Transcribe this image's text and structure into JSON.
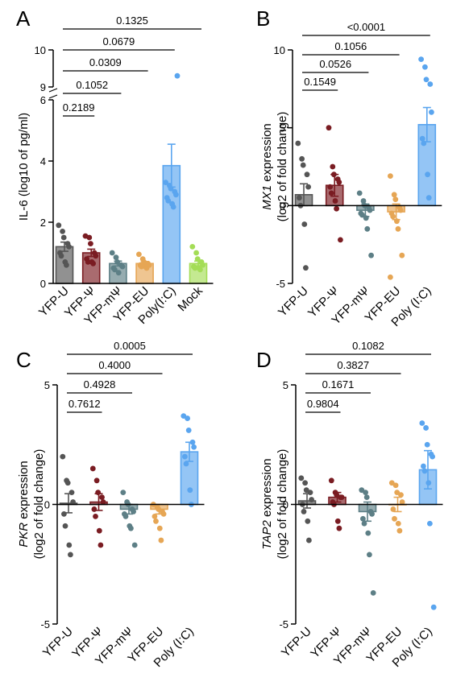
{
  "chart_data": [
    {
      "type": "bar",
      "panel": "A",
      "ylabel": "IL-6 (log10 of pg/ml)",
      "categories": [
        "YFP-U",
        "YFP-Ψ",
        "YFP-mΨ",
        "YFP-EU",
        "Poly(I:C)",
        "Mock"
      ],
      "values": [
        1.2,
        1.0,
        0.65,
        0.65,
        3.85,
        0.65
      ],
      "sem": [
        0.15,
        0.12,
        0.08,
        0.06,
        0.7,
        0.08
      ],
      "colors": [
        "#555555",
        "#7a1c22",
        "#5d7f86",
        "#e6a655",
        "#5aa5ef",
        "#a4dd56"
      ],
      "y_ticks": [
        "0",
        "2",
        "4",
        "6",
        "9",
        "10"
      ],
      "axis_break": "y between 6 and 9",
      "points": [
        [
          1.9,
          1.7,
          1.5,
          1.3,
          1.2,
          1.0,
          0.9,
          0.7,
          0.6
        ],
        [
          1.55,
          1.5,
          1.3,
          1.0,
          0.9,
          0.8,
          0.7,
          0.7,
          0.65
        ],
        [
          1.0,
          0.85,
          0.7,
          0.6,
          0.55,
          0.5,
          0.45,
          0.35
        ],
        [
          0.95,
          0.8,
          0.7,
          0.65,
          0.6,
          0.6,
          0.55,
          0.55,
          0.5
        ],
        [
          3.3,
          3.2,
          3.1,
          3.0,
          2.9,
          2.8,
          2.7,
          2.6,
          2.5,
          9.3
        ],
        [
          1.2,
          1.0,
          0.8,
          0.7,
          0.6,
          0.55,
          0.5,
          0.5,
          0.45
        ]
      ],
      "comparisons": [
        {
          "from": "YFP-U",
          "to": "YFP-Ψ",
          "p": "0.2189"
        },
        {
          "from": "YFP-U",
          "to": "YFP-mΨ",
          "p": "0.1052"
        },
        {
          "from": "YFP-U",
          "to": "YFP-EU",
          "p": "0.0309"
        },
        {
          "from": "YFP-U",
          "to": "Poly(I:C)",
          "p": "0.0679"
        },
        {
          "from": "YFP-U",
          "to": "Mock",
          "p": "0.1325"
        }
      ]
    },
    {
      "type": "bar",
      "panel": "B",
      "ylabel_italic": "MX1",
      "ylabel_rest": " expression",
      "ylabel_line2": "(log2 of fold change)",
      "categories": [
        "YFP-U",
        "YFP-Ψ",
        "YFP-mΨ",
        "YFP-EU",
        "Poly (I:C)"
      ],
      "values": [
        0.7,
        1.3,
        -0.3,
        -0.4,
        5.2
      ],
      "sem": [
        0.7,
        0.7,
        0.4,
        0.5,
        1.1
      ],
      "colors": [
        "#555555",
        "#7a1c22",
        "#5d7f86",
        "#e6a655",
        "#5aa5ef"
      ],
      "ylim": [
        -5,
        10
      ],
      "y_ticks": [
        "-5",
        "0",
        "5",
        "10"
      ],
      "points": [
        [
          4.0,
          3.0,
          2.6,
          2.0,
          1.2,
          0.5,
          0.0,
          -1.2,
          -4.0
        ],
        [
          5.0,
          2.5,
          2.0,
          1.7,
          1.5,
          1.2,
          0.8,
          0.3,
          -0.2,
          -2.2
        ],
        [
          0.8,
          0.3,
          0.0,
          -0.1,
          -0.3,
          -0.5,
          -0.6,
          -0.8,
          -1.5,
          -3.2
        ],
        [
          1.9,
          0.7,
          0.4,
          -0.1,
          -0.3,
          -0.5,
          -0.7,
          -1.0,
          -1.5,
          -3.2,
          -4.6
        ],
        [
          9.4,
          8.9,
          8.1,
          7.8,
          6.0,
          4.3,
          4.0,
          2.0,
          0.5
        ]
      ],
      "comparisons": [
        {
          "from": "YFP-U",
          "to": "YFP-Ψ",
          "p": "0.1549"
        },
        {
          "from": "YFP-U",
          "to": "YFP-mΨ",
          "p": "0.0526"
        },
        {
          "from": "YFP-U",
          "to": "YFP-EU",
          "p": "0.1056"
        },
        {
          "from": "YFP-U",
          "to": "Poly (I:C)",
          "p": "<0.0001"
        }
      ]
    },
    {
      "type": "bar",
      "panel": "C",
      "ylabel_italic": "PKR",
      "ylabel_rest": " expression",
      "ylabel_line2": "(log2 of fold change)",
      "categories": [
        "YFP-U",
        "YFP-Ψ",
        "YFP-mΨ",
        "YFP-EU",
        "Poly (I:C)"
      ],
      "values": [
        0.05,
        0.1,
        -0.2,
        -0.2,
        2.2
      ],
      "sem": [
        0.4,
        0.35,
        0.2,
        0.2,
        0.4
      ],
      "colors": [
        "#555555",
        "#7a1c22",
        "#5d7f86",
        "#e6a655",
        "#5aa5ef"
      ],
      "ylim": [
        -5,
        5
      ],
      "y_ticks": [
        "-5",
        "0",
        "5"
      ],
      "points": [
        [
          2.0,
          1.0,
          0.9,
          0.5,
          0.1,
          -0.4,
          -0.9,
          -1.7,
          -2.1
        ],
        [
          1.5,
          1.0,
          0.5,
          0.3,
          0.1,
          -0.2,
          -0.5,
          -1.1,
          -1.7
        ],
        [
          0.5,
          0.1,
          0.0,
          -0.2,
          -0.3,
          -0.4,
          -0.5,
          -0.9,
          -1.0,
          -1.7
        ],
        [
          0.0,
          -0.1,
          -0.2,
          -0.3,
          -0.4,
          -0.5,
          -0.7,
          -1.0,
          -1.5
        ],
        [
          3.7,
          3.6,
          3.1,
          2.6,
          2.4,
          2.0,
          1.7,
          0.6,
          0.0
        ]
      ],
      "comparisons": [
        {
          "from": "YFP-U",
          "to": "YFP-Ψ",
          "p": "0.7612"
        },
        {
          "from": "YFP-U",
          "to": "YFP-mΨ",
          "p": "0.4928"
        },
        {
          "from": "YFP-U",
          "to": "YFP-EU",
          "p": "0.4000"
        },
        {
          "from": "YFP-U",
          "to": "Poly (I:C)",
          "p": "0.0005"
        }
      ]
    },
    {
      "type": "bar",
      "panel": "D",
      "ylabel_italic": "TAP2",
      "ylabel_rest": " expression",
      "ylabel_line2": "(log2 of fold change)",
      "categories": [
        "YFP-U",
        "YFP-Ψ",
        "YFP-mΨ",
        "YFP-EU",
        "Poly (I:C)"
      ],
      "values": [
        0.15,
        0.3,
        -0.3,
        0.0,
        1.45
      ],
      "sem": [
        0.3,
        0.2,
        0.4,
        0.3,
        0.8
      ],
      "colors": [
        "#555555",
        "#7a1c22",
        "#5d7f86",
        "#e6a655",
        "#5aa5ef"
      ],
      "ylim": [
        -5,
        5
      ],
      "y_ticks": [
        "-5",
        "0",
        "5"
      ],
      "points": [
        [
          1.1,
          0.9,
          0.6,
          0.5,
          0.2,
          0.0,
          -0.3,
          -0.7,
          -1.5
        ],
        [
          1.0,
          0.5,
          0.4,
          0.3,
          0.3,
          0.1,
          0.0,
          -0.7,
          -1.0
        ],
        [
          0.6,
          0.5,
          0.3,
          -0.3,
          -0.4,
          -0.6,
          -0.8,
          -1.2,
          -2.1,
          -3.7
        ],
        [
          0.9,
          0.8,
          0.5,
          0.4,
          0.1,
          -0.2,
          -0.6,
          -0.8,
          -1.1
        ],
        [
          3.4,
          3.2,
          2.5,
          2.1,
          2.0,
          1.6,
          1.4,
          0.9,
          -0.8,
          -4.3
        ]
      ],
      "comparisons": [
        {
          "from": "YFP-U",
          "to": "YFP-Ψ",
          "p": "0.9804"
        },
        {
          "from": "YFP-U",
          "to": "YFP-mΨ",
          "p": "0.1671"
        },
        {
          "from": "YFP-U",
          "to": "YFP-EU",
          "p": "0.3827"
        },
        {
          "from": "YFP-U",
          "to": "Poly (I:C)",
          "p": "0.1082"
        }
      ]
    }
  ]
}
